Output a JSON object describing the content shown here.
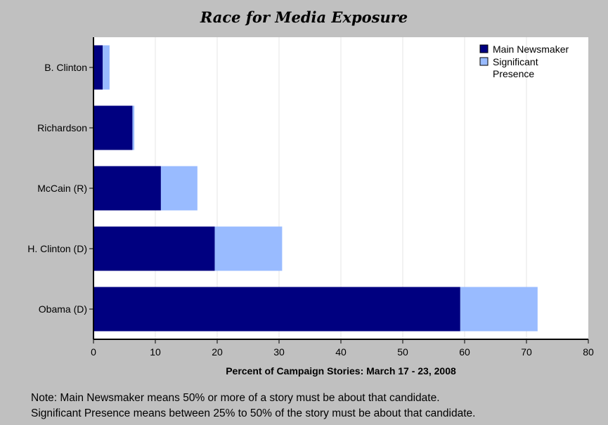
{
  "chart_data": {
    "type": "bar",
    "orientation": "horizontal",
    "stacked": true,
    "title": "Race for Media Exposure",
    "xlabel": "Percent of Campaign Stories: March 17 - 23, 2008",
    "ylabel": "",
    "categories": [
      "B. Clinton",
      "Richardson",
      "McCain (R)",
      "H. Clinton (D)",
      "Obama (D)"
    ],
    "series": [
      {
        "name": "Main Newsmaker",
        "color": "#000080",
        "values": [
          1.5,
          6.3,
          10.9,
          19.6,
          59.3
        ]
      },
      {
        "name": "Significant Presence",
        "legend_lines": [
          "Significant",
          "Presence"
        ],
        "color": "#99bbff",
        "values": [
          1.1,
          0.3,
          5.9,
          10.9,
          12.5
        ]
      }
    ],
    "xlim": [
      0,
      80
    ],
    "xticks": [
      "0",
      "10",
      "20",
      "30",
      "40",
      "50",
      "60",
      "70",
      "80"
    ],
    "grid": true,
    "legend_position": "top-right"
  },
  "note": {
    "line1": "Note: Main Newsmaker means 50% or more of a story must be about that candidate.",
    "line2": "Significant Presence means between 25% to 50% of the story must be about that candidate."
  }
}
